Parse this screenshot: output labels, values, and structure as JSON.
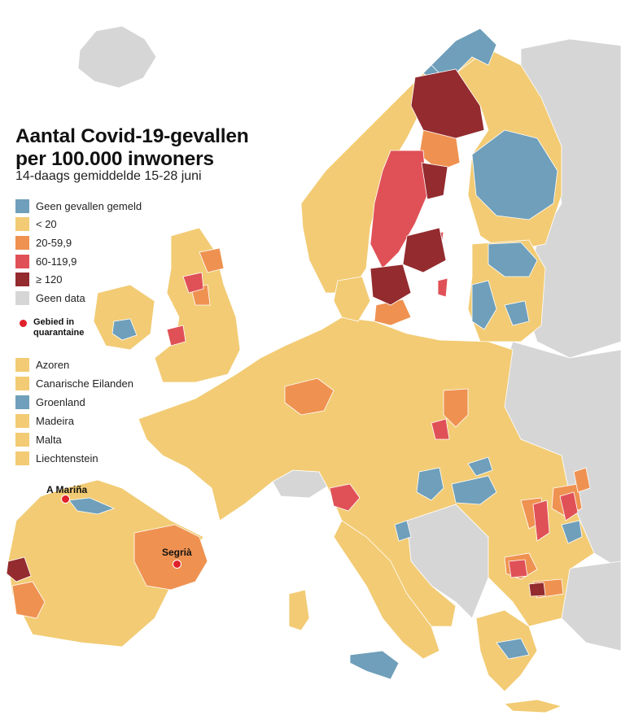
{
  "title_line1": "Aantal Covid-19-gevallen",
  "title_line2": "per 100.000 inwoners",
  "subtitle": "14-daags gemiddelde 15-28 juni",
  "legend": [
    {
      "label": "Geen gevallen gemeld",
      "color": "#6f9fba"
    },
    {
      "label": "< 20",
      "color": "#f2cb74"
    },
    {
      "label": "20-59,9",
      "color": "#ef9251"
    },
    {
      "label": "60-119,9",
      "color": "#e05157"
    },
    {
      "label": "≥ 120",
      "color": "#932b2f"
    },
    {
      "label": "Geen data",
      "color": "#d6d6d6"
    }
  ],
  "quarantine_legend": {
    "label": "Gebied in quarantaine",
    "color": "#e0202a"
  },
  "islands": [
    {
      "label": "Azoren",
      "color": "#f2cb74"
    },
    {
      "label": "Canarische Eilanden",
      "color": "#f2cb74"
    },
    {
      "label": "Groenland",
      "color": "#6f9fba"
    },
    {
      "label": "Madeira",
      "color": "#f2cb74"
    },
    {
      "label": "Malta",
      "color": "#f2cb74"
    },
    {
      "label": "Liechtenstein",
      "color": "#f2cb74"
    }
  ],
  "cities": [
    {
      "name": "A Mariña"
    },
    {
      "name": "Segrià"
    }
  ],
  "colors": {
    "none": "#6f9fba",
    "low": "#f2cb74",
    "mid": "#ef9251",
    "high": "#e05157",
    "very_high": "#932b2f",
    "no_data": "#d6d6d6",
    "sea": "#ffffff"
  }
}
